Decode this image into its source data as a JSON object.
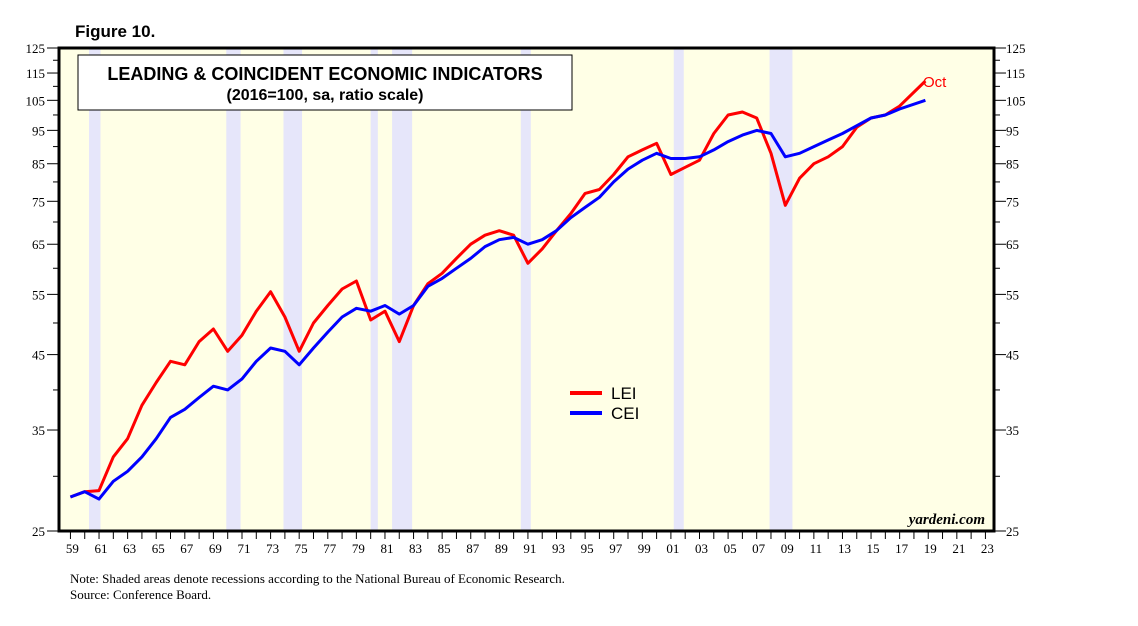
{
  "figure_label": "Figure 10.",
  "note": "Note: Shaded areas denote recessions according to the National Bureau of Economic Research.",
  "source": "Source: Conference Board.",
  "watermark": "yardeni.com",
  "colors": {
    "lei": "#ff0000",
    "cei": "#0000ff",
    "plot_bg": "#ffffe6",
    "recession": "#e6e6fa"
  },
  "chart_data": {
    "type": "line",
    "title": "LEADING & COINCIDENT ECONOMIC INDICATORS",
    "subtitle": "(2016=100, sa, ratio scale)",
    "yscale": "log",
    "ylim": [
      25,
      125
    ],
    "xlim": [
      1958.2,
      2023.6
    ],
    "yticks": [
      25,
      35,
      45,
      55,
      65,
      75,
      85,
      95,
      105,
      115,
      125
    ],
    "xtick_labels": [
      "59",
      "61",
      "63",
      "65",
      "67",
      "69",
      "71",
      "73",
      "75",
      "77",
      "79",
      "81",
      "83",
      "85",
      "87",
      "89",
      "91",
      "93",
      "95",
      "97",
      "99",
      "01",
      "03",
      "05",
      "07",
      "09",
      "11",
      "13",
      "15",
      "17",
      "19",
      "21",
      "23"
    ],
    "last_label": "Oct",
    "legend": {
      "position": "center",
      "entries": [
        "LEI",
        "CEI"
      ]
    },
    "recessions": [
      [
        1960.3,
        1961.1
      ],
      [
        1969.9,
        1970.9
      ],
      [
        1973.9,
        1975.2
      ],
      [
        1980.0,
        1980.5
      ],
      [
        1981.5,
        1982.9
      ],
      [
        1990.5,
        1991.2
      ],
      [
        2001.2,
        2001.9
      ],
      [
        2007.9,
        2009.5
      ]
    ],
    "x": [
      1959,
      1960,
      1961,
      1962,
      1963,
      1964,
      1965,
      1966,
      1967,
      1968,
      1969,
      1970,
      1971,
      1972,
      1973,
      1974,
      1975,
      1976,
      1977,
      1978,
      1979,
      1980,
      1981,
      1982,
      1983,
      1984,
      1985,
      1986,
      1987,
      1988,
      1989,
      1990,
      1991,
      1992,
      1993,
      1994,
      1995,
      1996,
      1997,
      1998,
      1999,
      2000,
      2001,
      2002,
      2003,
      2004,
      2005,
      2006,
      2007,
      2008,
      2009,
      2010,
      2011,
      2012,
      2013,
      2014,
      2015,
      2016,
      2017,
      2018.8
    ],
    "series": [
      {
        "name": "LEI",
        "values": [
          28,
          28.5,
          28.6,
          32,
          34,
          38,
          41,
          44,
          43.5,
          47,
          49,
          45.5,
          48,
          52,
          55.5,
          51,
          45.5,
          50,
          53,
          56,
          57.5,
          50.5,
          52,
          47,
          53,
          57,
          59,
          62,
          65,
          67,
          68,
          67,
          61,
          64,
          68,
          72,
          77,
          78,
          82,
          87,
          89,
          91,
          82,
          84,
          86,
          94,
          100,
          101,
          99,
          88,
          74,
          81,
          85,
          87,
          90,
          96,
          99,
          100,
          103,
          112
        ]
      },
      {
        "name": "CEI",
        "values": [
          28,
          28.5,
          27.8,
          29.5,
          30.5,
          32,
          34,
          36.5,
          37.5,
          39,
          40.5,
          40,
          41.5,
          44,
          46,
          45.5,
          43.5,
          46,
          48.5,
          51,
          52.5,
          52,
          53,
          51.5,
          53,
          56.5,
          58,
          60,
          62,
          64.5,
          66,
          66.5,
          65,
          66,
          68,
          71,
          73.5,
          76,
          80,
          83.5,
          86,
          88,
          86.5,
          86.5,
          87,
          89,
          91.5,
          93.5,
          95,
          94,
          87,
          88,
          90,
          92,
          94,
          96.5,
          99,
          100,
          102,
          105
        ]
      }
    ]
  }
}
